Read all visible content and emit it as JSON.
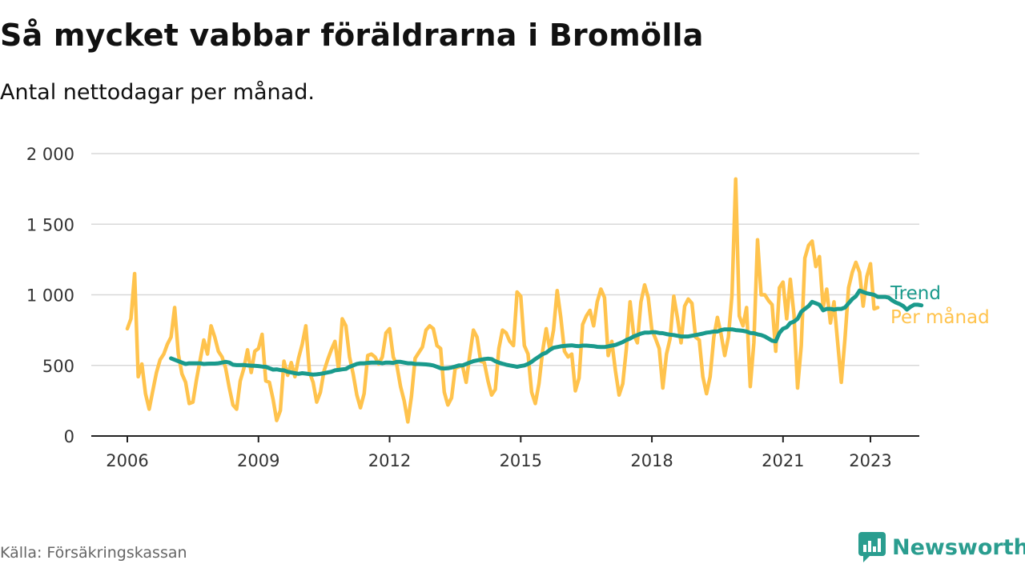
{
  "header": {
    "title": "Så mycket vabbar föräldrarna i Bromölla",
    "subtitle": "Antal nettodagar per månad."
  },
  "footer": {
    "source": "Källa: Försäkringskassan",
    "brand": "Newsworthy"
  },
  "colors": {
    "trend": "#1a9a8c",
    "monthly": "#ffc34d",
    "grid": "#d8d8d8",
    "axis": "#222222",
    "brand": "#2a9d8f"
  },
  "chart_data": {
    "type": "line",
    "ylim": [
      0,
      2000
    ],
    "yticks": [
      0,
      500,
      1000,
      1500,
      2000
    ],
    "ytick_labels": [
      "0",
      "500",
      "1 000",
      "1 500",
      "2 000"
    ],
    "xlim": [
      2005.75,
      2024.1
    ],
    "xticks": [
      2006,
      2009,
      2012,
      2015,
      2018,
      2021,
      2023
    ],
    "xtick_labels": [
      "2006",
      "2009",
      "2012",
      "2015",
      "2018",
      "2021",
      "2023"
    ],
    "grid": true,
    "legend": "right-end",
    "series": [
      {
        "name": "Per månad",
        "color": "#ffc34d",
        "start_year": 2006,
        "values": [
          760,
          830,
          1150,
          420,
          510,
          300,
          190,
          320,
          450,
          540,
          580,
          650,
          700,
          910,
          580,
          440,
          380,
          230,
          240,
          400,
          540,
          680,
          580,
          780,
          700,
          600,
          560,
          480,
          340,
          220,
          190,
          390,
          480,
          610,
          450,
          600,
          620,
          720,
          390,
          380,
          260,
          110,
          180,
          530,
          430,
          520,
          420,
          550,
          650,
          780,
          450,
          380,
          240,
          310,
          460,
          540,
          610,
          670,
          470,
          830,
          780,
          560,
          440,
          290,
          200,
          300,
          570,
          580,
          560,
          510,
          560,
          730,
          760,
          560,
          500,
          350,
          250,
          100,
          280,
          550,
          590,
          630,
          750,
          780,
          760,
          640,
          620,
          310,
          220,
          270,
          480,
          490,
          500,
          380,
          570,
          750,
          700,
          530,
          520,
          390,
          290,
          330,
          620,
          750,
          730,
          670,
          640,
          1020,
          990,
          640,
          580,
          310,
          230,
          370,
          600,
          760,
          610,
          750,
          1030,
          840,
          600,
          560,
          580,
          320,
          410,
          790,
          850,
          890,
          780,
          950,
          1040,
          980,
          570,
          670,
          460,
          290,
          370,
          620,
          950,
          720,
          660,
          950,
          1070,
          980,
          750,
          690,
          620,
          340,
          580,
          690,
          990,
          840,
          660,
          920,
          970,
          940,
          700,
          680,
          420,
          300,
          420,
          700,
          840,
          720,
          570,
          700,
          1000,
          1820,
          850,
          780,
          910,
          350,
          660,
          1390,
          1000,
          1000,
          960,
          930,
          600,
          1050,
          1090,
          830,
          1110,
          860,
          340,
          640,
          1260,
          1350,
          1380,
          1200,
          1270,
          910,
          1040,
          800,
          950,
          660,
          380,
          690,
          1050,
          1160,
          1230,
          1160,
          920,
          1130,
          1220,
          900,
          910
        ]
      },
      {
        "name": "Trend",
        "color": "#1a9a8c",
        "start_year": 2007,
        "values": [
          550,
          540,
          530,
          520,
          510,
          515,
          515,
          515,
          515,
          510,
          512,
          513,
          513,
          515,
          520,
          525,
          520,
          505,
          502,
          502,
          503,
          500,
          498,
          497,
          495,
          492,
          490,
          480,
          470,
          472,
          467,
          465,
          455,
          450,
          445,
          440,
          445,
          442,
          438,
          435,
          437,
          440,
          445,
          450,
          455,
          465,
          468,
          472,
          475,
          490,
          500,
          510,
          515,
          515,
          518,
          520,
          520,
          520,
          515,
          520,
          520,
          518,
          525,
          525,
          520,
          515,
          515,
          510,
          510,
          508,
          507,
          504,
          500,
          490,
          480,
          478,
          480,
          485,
          492,
          500,
          500,
          510,
          520,
          530,
          535,
          540,
          545,
          548,
          545,
          530,
          520,
          512,
          505,
          500,
          495,
          490,
          495,
          500,
          510,
          525,
          545,
          562,
          580,
          590,
          610,
          625,
          630,
          635,
          638,
          640,
          642,
          638,
          636,
          640,
          640,
          638,
          636,
          632,
          630,
          630,
          635,
          640,
          645,
          655,
          665,
          680,
          690,
          705,
          715,
          725,
          732,
          732,
          735,
          735,
          730,
          728,
          722,
          718,
          715,
          710,
          705,
          705,
          705,
          710,
          715,
          720,
          725,
          732,
          735,
          740,
          740,
          750,
          755,
          755,
          755,
          750,
          748,
          745,
          740,
          730,
          728,
          720,
          715,
          705,
          690,
          675,
          670,
          730,
          760,
          770,
          800,
          810,
          830,
          880,
          900,
          920,
          950,
          940,
          930,
          890,
          900,
          900,
          895,
          900,
          900,
          910,
          940,
          970,
          990,
          1030,
          1020,
          1010,
          1005,
          1000,
          985,
          985,
          985,
          980,
          960,
          945,
          935,
          920,
          895,
          915,
          930,
          930,
          925
        ]
      }
    ]
  }
}
